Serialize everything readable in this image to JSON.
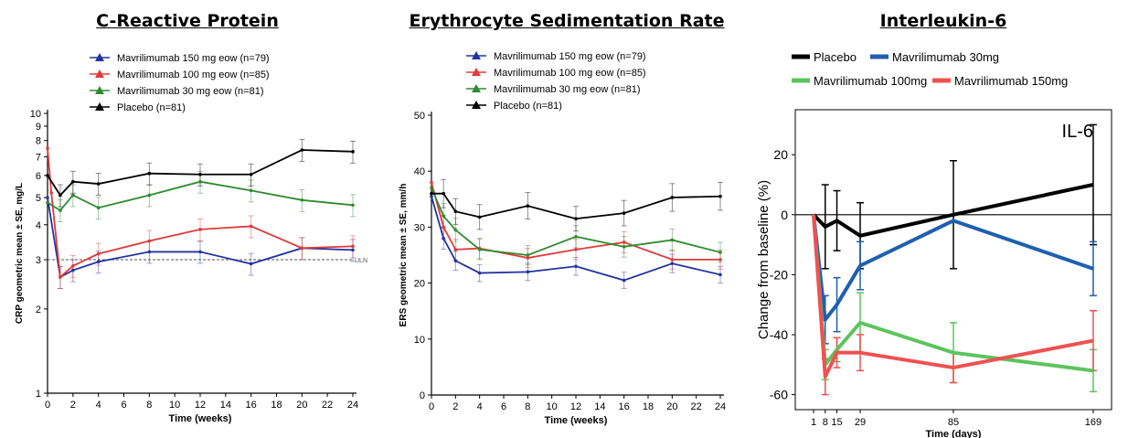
{
  "chart_data": [
    {
      "type": "line",
      "title": "C-Reactive Protein",
      "xlabel": "Time (weeks)",
      "ylabel": "CRP geometric mean ± SE, mg/L",
      "yscale": "log",
      "ylim": [
        1,
        10
      ],
      "xlim": [
        0,
        24
      ],
      "x_ticks": [
        "0",
        "2",
        "4",
        "6",
        "8",
        "10",
        "12",
        "14",
        "16",
        "18",
        "20",
        "22",
        "24"
      ],
      "y_ticks": [
        {
          "value": 1,
          "label": "1"
        },
        {
          "value": 2,
          "label": "2"
        },
        {
          "value": 3,
          "label": "3"
        },
        {
          "value": 4,
          "label": "4"
        },
        {
          "value": 5,
          "label": "5"
        },
        {
          "value": 6,
          "label": "6"
        },
        {
          "value": 7,
          "label": "7"
        },
        {
          "value": 8,
          "label": "8"
        },
        {
          "value": 9,
          "label": "9"
        },
        {
          "value": 10,
          "label": "10"
        }
      ],
      "reference_line": {
        "value": 3,
        "label": "ULN"
      },
      "legend_position": "top",
      "series": [
        {
          "name": "Mavrilimumab 150 mg eow (n=79)",
          "color": "#2233a0",
          "x": [
            0,
            1,
            2,
            4,
            8,
            12,
            16,
            20,
            24
          ],
          "y": [
            5.0,
            2.6,
            2.75,
            2.95,
            3.2,
            3.2,
            2.9,
            3.3,
            3.25
          ]
        },
        {
          "name": "Mavrilimumab 100 mg eow (n=85)",
          "color": "#e03a3a",
          "x": [
            0,
            0.3,
            1,
            2,
            4,
            8,
            12,
            16,
            20,
            24
          ],
          "y": [
            7.5,
            5.2,
            2.6,
            2.85,
            3.15,
            3.5,
            3.85,
            3.95,
            3.3,
            3.35
          ]
        },
        {
          "name": "Mavrilimumab 30 mg eow (n=81)",
          "color": "#2e8b2e",
          "x": [
            0,
            1,
            2,
            4,
            8,
            12,
            16,
            20,
            24
          ],
          "y": [
            4.8,
            4.5,
            5.1,
            4.6,
            5.1,
            5.7,
            5.3,
            4.9,
            4.7
          ]
        },
        {
          "name": "Placebo (n=81)",
          "color": "#000000",
          "x": [
            0,
            1,
            2,
            4,
            8,
            12,
            16,
            20,
            24
          ],
          "y": [
            6.0,
            5.1,
            5.7,
            5.6,
            6.1,
            6.05,
            6.05,
            7.4,
            7.3
          ]
        }
      ]
    },
    {
      "type": "line",
      "title": "Erythrocyte Sedimentation Rate",
      "xlabel": "Time (weeks)",
      "ylabel": "ERS geometric mean ± SE, mm/h",
      "ylim": [
        0,
        50
      ],
      "xlim": [
        0,
        24
      ],
      "x_ticks": [
        "0",
        "2",
        "4",
        "6",
        "8",
        "10",
        "12",
        "14",
        "16",
        "18",
        "20",
        "22",
        "24"
      ],
      "y_ticks": [
        "0",
        "10",
        "20",
        "30",
        "40",
        "50"
      ],
      "legend_position": "top",
      "series": [
        {
          "name": "Mavrilimumab 150 mg eow (n=79)",
          "color": "#2233a0",
          "x": [
            0,
            1,
            2,
            4,
            8,
            12,
            16,
            20,
            24
          ],
          "y": [
            35.5,
            28.0,
            24.0,
            21.8,
            22.0,
            23.0,
            20.5,
            23.5,
            21.5
          ]
        },
        {
          "name": "Mavrilimumab 100 mg eow (n=85)",
          "color": "#e03a3a",
          "x": [
            0,
            1,
            2,
            4,
            8,
            12,
            16,
            20,
            24
          ],
          "y": [
            38.0,
            30.0,
            26.0,
            26.2,
            24.5,
            26.0,
            27.3,
            24.2,
            24.2
          ]
        },
        {
          "name": "Mavrilimumab 30 mg eow (n=81)",
          "color": "#2e8b2e",
          "x": [
            0,
            1,
            2,
            4,
            8,
            12,
            16,
            20,
            24
          ],
          "y": [
            37.0,
            32.0,
            29.5,
            26.0,
            25.0,
            28.3,
            26.5,
            27.7,
            25.5
          ]
        },
        {
          "name": "Placebo (n=81)",
          "color": "#000000",
          "x": [
            0,
            1,
            2,
            4,
            8,
            12,
            16,
            20,
            24
          ],
          "y": [
            36.0,
            36.0,
            32.8,
            31.8,
            33.8,
            31.5,
            32.5,
            35.3,
            35.5
          ]
        }
      ]
    },
    {
      "type": "line",
      "title": "Interleukin-6",
      "annotation": "IL-6",
      "xlabel": "Time (days)",
      "ylabel": "Change from baseline (%)",
      "ylim": [
        -65,
        35
      ],
      "xlim": [
        -10,
        180
      ],
      "x_ticks": [
        "1",
        "8",
        "15",
        "29",
        "85",
        "169"
      ],
      "y_ticks": [
        "20",
        "0",
        "-20",
        "-40",
        "-60"
      ],
      "legend_position": "top",
      "series": [
        {
          "name": "Placebo",
          "color": "#000000",
          "x": [
            1,
            8,
            15,
            29,
            85,
            169
          ],
          "y": [
            0,
            -4,
            -2,
            -7,
            0,
            10
          ],
          "err": [
            0,
            14,
            10,
            11,
            18,
            20
          ]
        },
        {
          "name": "Mavrilimumab 30mg",
          "color": "#1f5fae",
          "x": [
            1,
            8,
            15,
            29,
            85,
            169
          ],
          "y": [
            0,
            -35,
            -30,
            -17,
            -2,
            -18
          ],
          "err": [
            0,
            8,
            9,
            8,
            0,
            9
          ]
        },
        {
          "name": "Mavrilimumab 100mg",
          "color": "#5cc45c",
          "x": [
            1,
            8,
            15,
            29,
            85,
            169
          ],
          "y": [
            0,
            -50,
            -45,
            -36,
            -46,
            -52
          ],
          "err": [
            0,
            5,
            4,
            10,
            10,
            7
          ]
        },
        {
          "name": "Mavrilimumab 150mg",
          "color": "#ef5151",
          "x": [
            1,
            8,
            15,
            29,
            85,
            169
          ],
          "y": [
            0,
            -54,
            -46,
            -46,
            -51,
            -42
          ],
          "err": [
            0,
            6,
            5,
            6,
            5,
            10
          ]
        }
      ]
    }
  ]
}
